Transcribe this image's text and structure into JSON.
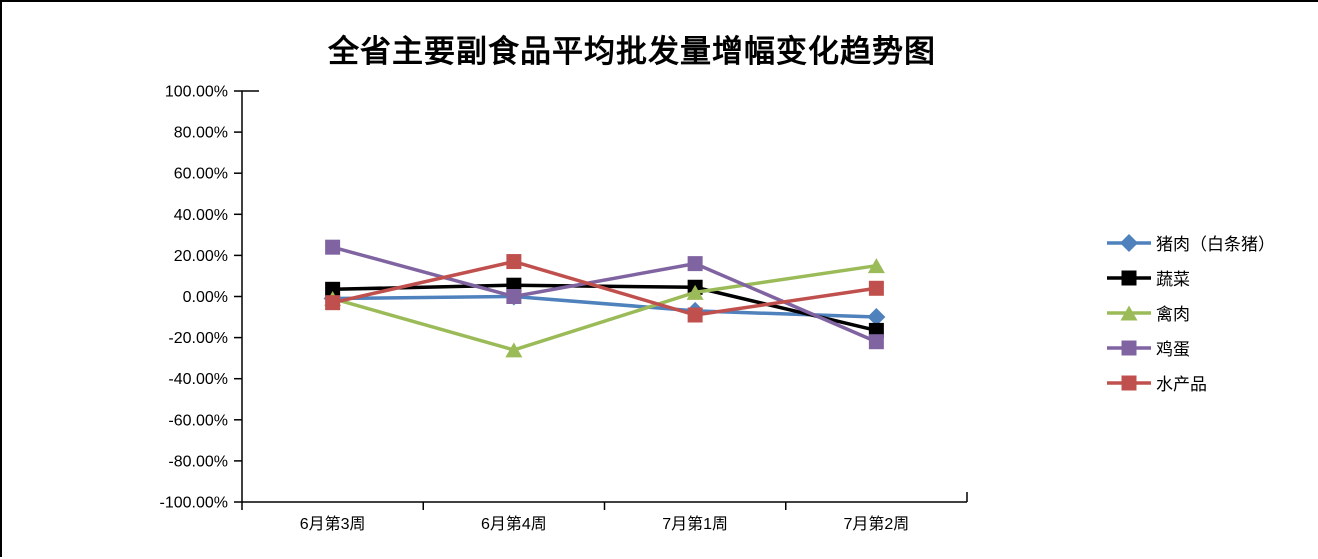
{
  "chart_data": {
    "type": "line",
    "title": "全省主要副食品平均批发量增幅变化趋势图",
    "categories": [
      "6月第3周",
      "6月第4周",
      "7月第1周",
      "7月第2周"
    ],
    "series": [
      {
        "name": "猪肉（白条猪）",
        "marker": "diamond",
        "color": "#4F81BD",
        "values": [
          -1,
          0,
          -7,
          -10
        ]
      },
      {
        "name": "蔬菜",
        "marker": "square",
        "color": "#000000",
        "values": [
          3.5,
          5.5,
          4.5,
          -16.5
        ]
      },
      {
        "name": "禽肉",
        "marker": "triangle",
        "color": "#9BBB59",
        "values": [
          -1,
          -26,
          2,
          15
        ]
      },
      {
        "name": "鸡蛋",
        "marker": "square",
        "color": "#8064A2",
        "values": [
          24,
          0,
          16,
          -22
        ]
      },
      {
        "name": "水产品",
        "marker": "square",
        "color": "#C0504D",
        "values": [
          -3,
          17,
          -9,
          4
        ]
      }
    ],
    "y_axis": {
      "min": -100,
      "max": 100,
      "step": 20,
      "tick_labels": [
        "100.00%",
        "80.00%",
        "60.00%",
        "40.00%",
        "20.00%",
        "0.00%",
        "-20.00%",
        "-40.00%",
        "-60.00%",
        "-80.00%",
        "-100.00%"
      ]
    },
    "x_axis": {
      "tick_labels": [
        "6月第3周",
        "6月第4周",
        "7月第1周",
        "7月第2周"
      ]
    },
    "legend_position": "right",
    "grid": false,
    "axis_color": "#000000",
    "background": "#FFFFFF"
  }
}
